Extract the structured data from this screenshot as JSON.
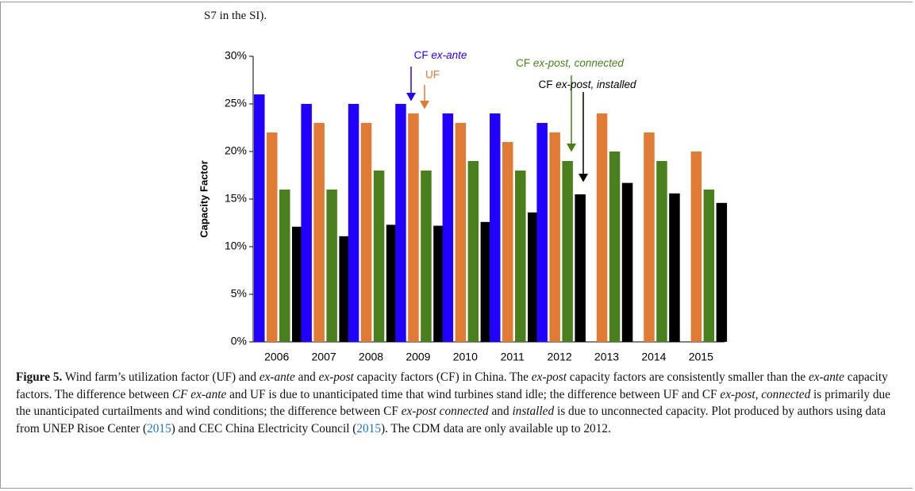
{
  "header": {
    "text": "S7 in the SI)."
  },
  "chart_data": {
    "type": "bar",
    "y_label": "Capacity Factor",
    "categories": [
      "2006",
      "2007",
      "2008",
      "2009",
      "2010",
      "2011",
      "2012",
      "2013",
      "2014",
      "2015"
    ],
    "series": [
      {
        "name": "CF ex-ante",
        "color": "#2200ff",
        "values": [
          26,
          25,
          25,
          25,
          24,
          24,
          23,
          null,
          null,
          null
        ]
      },
      {
        "name": "UF",
        "color": "#e07a35",
        "values": [
          22,
          23,
          23,
          24,
          23,
          21,
          22,
          24,
          22,
          20
        ]
      },
      {
        "name": "CF ex-post, connected",
        "color": "#4a7f1e",
        "values": [
          16,
          16,
          18,
          18,
          19,
          18,
          19,
          20,
          19,
          16
        ]
      },
      {
        "name": "CF ex-post, installed",
        "color": "#000000",
        "values": [
          12.1,
          11.1,
          12.3,
          12.2,
          12.6,
          13.6,
          15.5,
          16.7,
          15.6,
          14.6
        ]
      }
    ],
    "ylim": [
      0,
      30
    ],
    "yticks": [
      {
        "value": 0,
        "label": "0%"
      },
      {
        "value": 5,
        "label": "5%"
      },
      {
        "value": 10,
        "label": "10%"
      },
      {
        "value": 15,
        "label": "15%"
      },
      {
        "value": 20,
        "label": "20%"
      },
      {
        "value": 25,
        "label": "25%"
      },
      {
        "value": 30,
        "label": "30%"
      }
    ]
  },
  "caption": {
    "runs": [
      "Figure 5.",
      " Wind farm’s utilization factor (UF) and ",
      "ex-ante",
      " and ",
      "ex-post",
      " capacity factors (CF) in China. The ",
      "ex-post",
      " capacity factors are consistently smaller than the ",
      "ex-ante",
      " capacity factors. The difference between ",
      "CF ex-ante",
      " and UF is due to unanticipated time that wind turbines stand idle; the difference between UF and CF ",
      "ex-post, connected",
      " is primarily due the unanticipated curtailments and wind conditions; the difference between CF ",
      "ex-post connected",
      " and ",
      "installed",
      " is due to unconnected capacity. Plot produced by authors using data from UNEP Risoe Center (",
      "2015",
      ") and CEC China Electricity Council (",
      "2015",
      "). The CDM data are only available up to 2012."
    ]
  }
}
